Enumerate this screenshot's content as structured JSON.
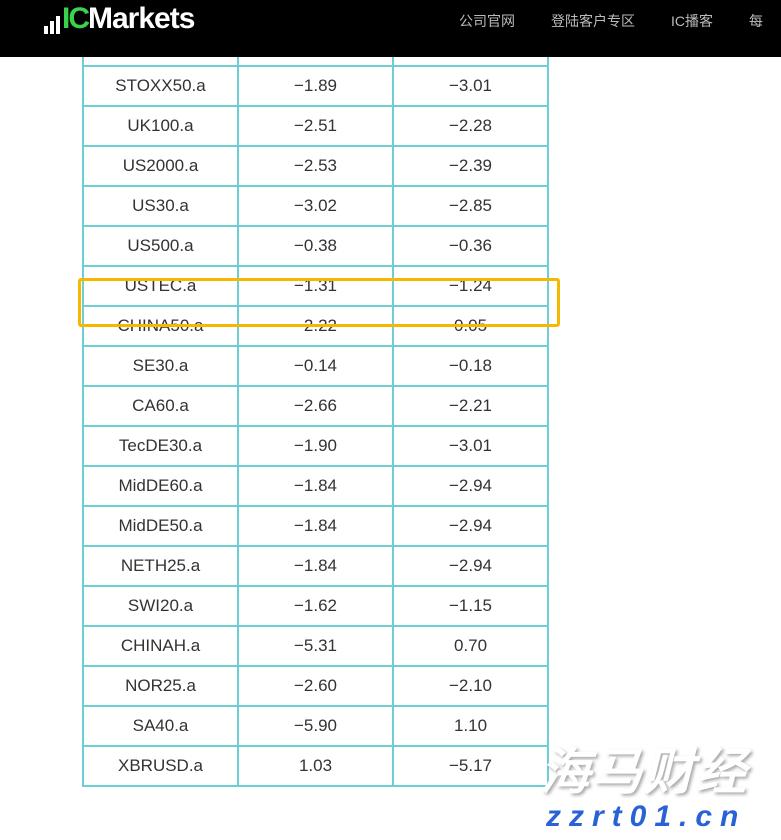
{
  "header": {
    "logo": {
      "ic": "IC",
      "markets": "Markets"
    },
    "nav": [
      "公司官网",
      "登陆客户专区",
      "IC播客",
      "每"
    ]
  },
  "table": {
    "rows": [
      [
        "",
        "",
        ""
      ],
      [
        "STOXX50.a",
        "−1.89",
        "−3.01"
      ],
      [
        "UK100.a",
        "−2.51",
        "−2.28"
      ],
      [
        "US2000.a",
        "−2.53",
        "−2.39"
      ],
      [
        "US30.a",
        "−3.02",
        "−2.85"
      ],
      [
        "US500.a",
        "−0.38",
        "−0.36"
      ],
      [
        "USTEC.a",
        "−1.31",
        "−1.24"
      ],
      [
        "CHINA50.a",
        "−2.22",
        "0.05"
      ],
      [
        "SE30.a",
        "−0.14",
        "−0.18"
      ],
      [
        "CA60.a",
        "−2.66",
        "−2.21"
      ],
      [
        "TecDE30.a",
        "−1.90",
        "−3.01"
      ],
      [
        "MidDE60.a",
        "−1.84",
        "−2.94"
      ],
      [
        "MidDE50.a",
        "−1.84",
        "−2.94"
      ],
      [
        "NETH25.a",
        "−1.84",
        "−2.94"
      ],
      [
        "SWI20.a",
        "−1.62",
        "−1.15"
      ],
      [
        "CHINAH.a",
        "−5.31",
        "0.70"
      ],
      [
        "NOR25.a",
        "−2.60",
        "−2.10"
      ],
      [
        "SA40.a",
        "−5.90",
        "1.10"
      ],
      [
        "XBRUSD.a",
        "1.03",
        "−5.17"
      ]
    ],
    "highlighted_row": "USTEC.a",
    "highlight_color": "#f5b800",
    "border_color": "#6ccfd6"
  },
  "watermark": {
    "name": "海马财经",
    "url": "zzrt01.cn"
  }
}
